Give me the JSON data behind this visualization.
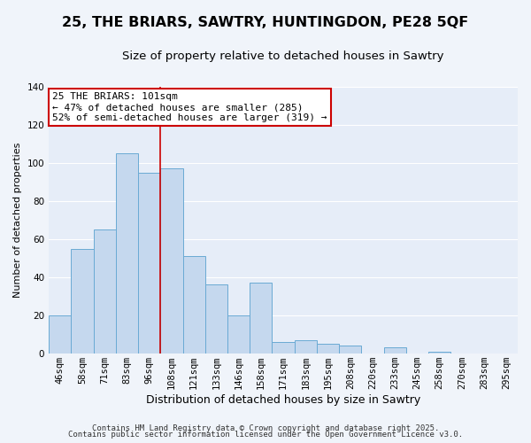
{
  "title": "25, THE BRIARS, SAWTRY, HUNTINGDON, PE28 5QF",
  "subtitle": "Size of property relative to detached houses in Sawtry",
  "xlabel": "Distribution of detached houses by size in Sawtry",
  "ylabel": "Number of detached properties",
  "bar_labels": [
    "46sqm",
    "58sqm",
    "71sqm",
    "83sqm",
    "96sqm",
    "108sqm",
    "121sqm",
    "133sqm",
    "146sqm",
    "158sqm",
    "171sqm",
    "183sqm",
    "195sqm",
    "208sqm",
    "220sqm",
    "233sqm",
    "245sqm",
    "258sqm",
    "270sqm",
    "283sqm",
    "295sqm"
  ],
  "bar_values": [
    20,
    55,
    65,
    105,
    95,
    97,
    51,
    36,
    20,
    37,
    6,
    7,
    5,
    4,
    0,
    3,
    0,
    1,
    0,
    0,
    0
  ],
  "bar_color": "#c5d8ee",
  "bar_edge_color": "#6aaad4",
  "background_color": "#f0f4fa",
  "plot_bg_color": "#e6edf8",
  "grid_color": "#ffffff",
  "vline_x": 5,
  "vline_color": "#cc0000",
  "annotation_title": "25 THE BRIARS: 101sqm",
  "annotation_line1": "← 47% of detached houses are smaller (285)",
  "annotation_line2": "52% of semi-detached houses are larger (319) →",
  "annotation_box_color": "#ffffff",
  "annotation_box_edge": "#cc0000",
  "ylim": [
    0,
    140
  ],
  "yticks": [
    0,
    20,
    40,
    60,
    80,
    100,
    120,
    140
  ],
  "footer1": "Contains HM Land Registry data © Crown copyright and database right 2025.",
  "footer2": "Contains public sector information licensed under the Open Government Licence v3.0.",
  "title_fontsize": 11.5,
  "subtitle_fontsize": 9.5,
  "ylabel_fontsize": 8,
  "xlabel_fontsize": 9,
  "tick_fontsize": 7.5,
  "annot_fontsize": 8,
  "footer_fontsize": 6.5
}
